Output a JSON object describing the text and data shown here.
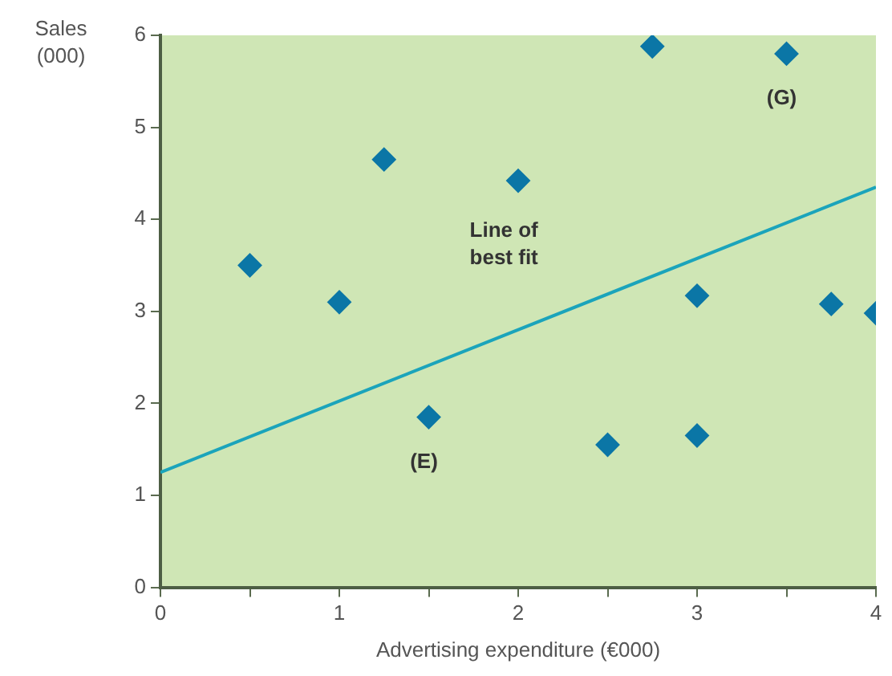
{
  "chart_data": {
    "type": "scatter",
    "xlabel": "Advertising expenditure (€000)",
    "ylabel": "Sales\n(000)",
    "x": [
      0.5,
      1,
      1.25,
      1.5,
      2,
      2.5,
      2.75,
      3,
      3,
      3.5,
      3.75,
      4
    ],
    "series": [
      {
        "color": "#0b76a6",
        "values": [
          3.5,
          3.1,
          4.65,
          1.85,
          4.42,
          1.55,
          5.88,
          3.17,
          1.65,
          5.8,
          3.08,
          2.98
        ]
      },
      {
        "type": "line",
        "color": "#1ba4bb",
        "x": [
          0,
          4
        ],
        "values": [
          1.25,
          4.35
        ],
        "marker": "none"
      }
    ],
    "xlim": [
      0,
      4
    ],
    "xticks": [
      0,
      {
        "value": 0.5,
        "label": null
      },
      1,
      {
        "value": 1.5,
        "label": null
      },
      2,
      {
        "value": 2.5,
        "label": null
      },
      3,
      {
        "value": 3.5,
        "label": null
      },
      4
    ],
    "ylim": [
      0,
      6
    ],
    "yticks": [
      0,
      1,
      2,
      3,
      4,
      5,
      6
    ],
    "grid": false,
    "legend": false,
    "marker": "diamond",
    "annotations": [
      "Line of\nbest fit",
      {
        "text": "(G)",
        "x": 3.5,
        "y": 5.8
      },
      {
        "text": "(E)",
        "x": 1.5,
        "y": 1.85
      }
    ]
  }
}
